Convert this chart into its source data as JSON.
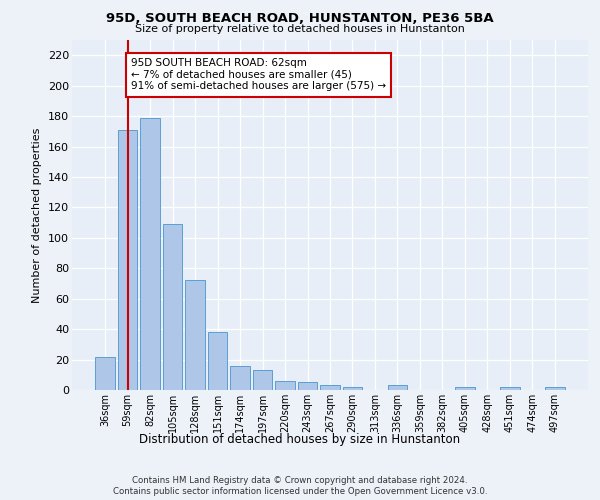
{
  "title": "95D, SOUTH BEACH ROAD, HUNSTANTON, PE36 5BA",
  "subtitle": "Size of property relative to detached houses in Hunstanton",
  "xlabel": "Distribution of detached houses by size in Hunstanton",
  "ylabel": "Number of detached properties",
  "footer_line1": "Contains HM Land Registry data © Crown copyright and database right 2024.",
  "footer_line2": "Contains public sector information licensed under the Open Government Licence v3.0.",
  "categories": [
    "36sqm",
    "59sqm",
    "82sqm",
    "105sqm",
    "128sqm",
    "151sqm",
    "174sqm",
    "197sqm",
    "220sqm",
    "243sqm",
    "267sqm",
    "290sqm",
    "313sqm",
    "336sqm",
    "359sqm",
    "382sqm",
    "405sqm",
    "428sqm",
    "451sqm",
    "474sqm",
    "497sqm"
  ],
  "values": [
    22,
    171,
    179,
    109,
    72,
    38,
    16,
    13,
    6,
    5,
    3,
    2,
    0,
    3,
    0,
    0,
    2,
    0,
    2,
    0,
    2
  ],
  "bar_color": "#aec6e8",
  "bar_edge_color": "#5a9fd4",
  "ylim": [
    0,
    230
  ],
  "yticks": [
    0,
    20,
    40,
    60,
    80,
    100,
    120,
    140,
    160,
    180,
    200,
    220
  ],
  "vline_x": 1,
  "annotation_line1": "95D SOUTH BEACH ROAD: 62sqm",
  "annotation_line2": "← 7% of detached houses are smaller (45)",
  "annotation_line3": "91% of semi-detached houses are larger (575) →",
  "annotation_box_color": "#ffffff",
  "annotation_box_edge": "#cc0000",
  "vline_color": "#cc0000",
  "bg_color": "#edf2f9",
  "plot_bg_color": "#e8eef7"
}
